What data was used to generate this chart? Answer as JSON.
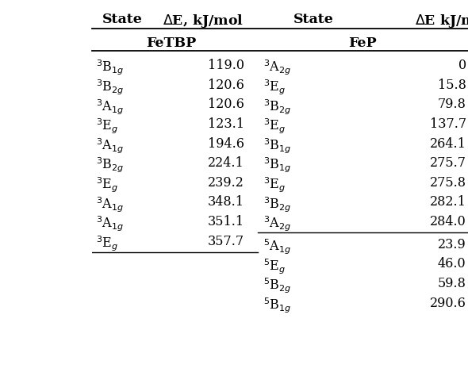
{
  "col_headers_left": "ΔE, kJ/mol",
  "col_headers_right_state": "State",
  "col_headers_right_de": "ΔE kJ/m",
  "sub_header_left": "FeTBP",
  "sub_header_right": "FeP",
  "fetbp_states": [
    [
      "$^3$B$_{1g}$",
      "119.0"
    ],
    [
      "$^3$B$_{2g}$",
      "120.6"
    ],
    [
      "$^3$A$_{1g}$",
      "120.6"
    ],
    [
      "$^3$E$_g$",
      "123.1"
    ],
    [
      "$^3$A$_{1g}$",
      "194.6"
    ],
    [
      "$^3$B$_{2g}$",
      "224.1"
    ],
    [
      "$^3$E$_g$",
      "239.2"
    ],
    [
      "$^3$A$_{1g}$",
      "348.1"
    ],
    [
      "$^3$A$_{1g}$",
      "351.1"
    ],
    [
      "$^3$E$_g$",
      "357.7"
    ]
  ],
  "fep_triplet_states": [
    [
      "$^3$A$_{2g}$",
      "0"
    ],
    [
      "$^3$E$_g$",
      "15.8"
    ],
    [
      "$^3$B$_{2g}$",
      "79.8"
    ],
    [
      "$^3$E$_g$",
      "137.7"
    ],
    [
      "$^3$B$_{1g}$",
      "264.1"
    ],
    [
      "$^3$B$_{1g}$",
      "275.7"
    ],
    [
      "$^3$E$_g$",
      "275.8"
    ],
    [
      "$^3$B$_{2g}$",
      "282.1"
    ],
    [
      "$^3$A$_{2g}$",
      "284.0"
    ]
  ],
  "fep_quintet_states": [
    [
      "$^5$A$_{1g}$",
      "23.9"
    ],
    [
      "$^5$E$_g$",
      "46.0"
    ],
    [
      "$^5$B$_{2g}$",
      "59.8"
    ],
    [
      "$^5$B$_{1g}$",
      "290.6"
    ]
  ],
  "bg_color": "#ffffff",
  "text_color": "#000000",
  "line_color": "#000000",
  "font_size": 11.5,
  "header_font_size": 12.5
}
